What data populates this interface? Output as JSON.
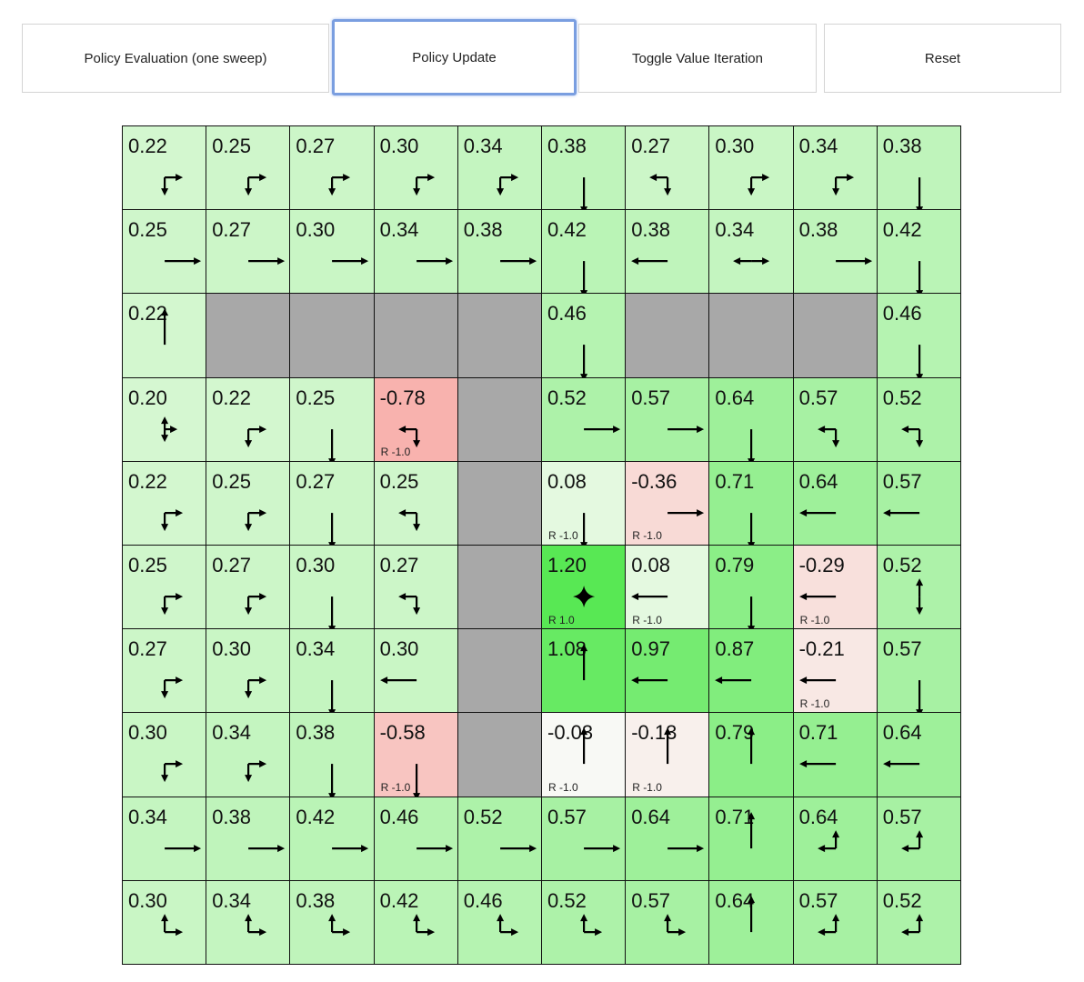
{
  "toolbar": {
    "buttons": [
      {
        "label": "Policy Evaluation (one sweep)"
      },
      {
        "label": "Policy Update",
        "focused": true
      },
      {
        "label": "Toggle Value Iteration"
      },
      {
        "label": "Reset"
      }
    ]
  },
  "colors": {
    "wall": "#a8a8a8",
    "grid_line": "#111111",
    "focus_border": "#7a9ee0"
  },
  "grid": {
    "rows": [
      [
        {
          "v": "0.22",
          "p": "rd"
        },
        {
          "v": "0.25",
          "p": "rd"
        },
        {
          "v": "0.27",
          "p": "rd"
        },
        {
          "v": "0.30",
          "p": "rd"
        },
        {
          "v": "0.34",
          "p": "rd"
        },
        {
          "v": "0.38",
          "p": "d"
        },
        {
          "v": "0.27",
          "p": "ld"
        },
        {
          "v": "0.30",
          "p": "rd"
        },
        {
          "v": "0.34",
          "p": "rd"
        },
        {
          "v": "0.38",
          "p": "d"
        }
      ],
      [
        {
          "v": "0.25",
          "p": "r"
        },
        {
          "v": "0.27",
          "p": "r"
        },
        {
          "v": "0.30",
          "p": "r"
        },
        {
          "v": "0.34",
          "p": "r"
        },
        {
          "v": "0.38",
          "p": "r"
        },
        {
          "v": "0.42",
          "p": "d"
        },
        {
          "v": "0.38",
          "p": "l"
        },
        {
          "v": "0.34",
          "p": "lr"
        },
        {
          "v": "0.38",
          "p": "r"
        },
        {
          "v": "0.42",
          "p": "d"
        }
      ],
      [
        {
          "v": "0.22",
          "p": "u"
        },
        {
          "wall": true
        },
        {
          "wall": true
        },
        {
          "wall": true
        },
        {
          "wall": true
        },
        {
          "v": "0.46",
          "p": "d"
        },
        {
          "wall": true
        },
        {
          "wall": true
        },
        {
          "wall": true
        },
        {
          "v": "0.46",
          "p": "d"
        }
      ],
      [
        {
          "v": "0.20",
          "p": "udr"
        },
        {
          "v": "0.22",
          "p": "rd"
        },
        {
          "v": "0.25",
          "p": "d"
        },
        {
          "v": "-0.78",
          "p": "ld",
          "r": "R -1.0"
        },
        {
          "wall": true
        },
        {
          "v": "0.52",
          "p": "r"
        },
        {
          "v": "0.57",
          "p": "r"
        },
        {
          "v": "0.64",
          "p": "d"
        },
        {
          "v": "0.57",
          "p": "ld"
        },
        {
          "v": "0.52",
          "p": "ld"
        }
      ],
      [
        {
          "v": "0.22",
          "p": "rd"
        },
        {
          "v": "0.25",
          "p": "rd"
        },
        {
          "v": "0.27",
          "p": "d"
        },
        {
          "v": "0.25",
          "p": "ld"
        },
        {
          "wall": true
        },
        {
          "v": "0.08",
          "p": "d",
          "r": "R -1.0"
        },
        {
          "v": "-0.36",
          "p": "r",
          "r": "R -1.0"
        },
        {
          "v": "0.71",
          "p": "d"
        },
        {
          "v": "0.64",
          "p": "l"
        },
        {
          "v": "0.57",
          "p": "l"
        }
      ],
      [
        {
          "v": "0.25",
          "p": "rd"
        },
        {
          "v": "0.27",
          "p": "rd"
        },
        {
          "v": "0.30",
          "p": "d"
        },
        {
          "v": "0.27",
          "p": "ld"
        },
        {
          "wall": true
        },
        {
          "v": "1.20",
          "p": "star",
          "r": "R 1.0"
        },
        {
          "v": "0.08",
          "p": "l",
          "r": "R -1.0"
        },
        {
          "v": "0.79",
          "p": "d"
        },
        {
          "v": "-0.29",
          "p": "l",
          "r": "R -1.0"
        },
        {
          "v": "0.52",
          "p": "ud"
        }
      ],
      [
        {
          "v": "0.27",
          "p": "rd"
        },
        {
          "v": "0.30",
          "p": "rd"
        },
        {
          "v": "0.34",
          "p": "d"
        },
        {
          "v": "0.30",
          "p": "l"
        },
        {
          "wall": true
        },
        {
          "v": "1.08",
          "p": "u"
        },
        {
          "v": "0.97",
          "p": "l"
        },
        {
          "v": "0.87",
          "p": "l"
        },
        {
          "v": "-0.21",
          "p": "l",
          "r": "R -1.0"
        },
        {
          "v": "0.57",
          "p": "d"
        }
      ],
      [
        {
          "v": "0.30",
          "p": "rd"
        },
        {
          "v": "0.34",
          "p": "rd"
        },
        {
          "v": "0.38",
          "p": "d"
        },
        {
          "v": "-0.58",
          "p": "d",
          "r": "R -1.0"
        },
        {
          "wall": true
        },
        {
          "v": "-0.03",
          "p": "u",
          "r": "R -1.0"
        },
        {
          "v": "-0.13",
          "p": "u",
          "r": "R -1.0"
        },
        {
          "v": "0.79",
          "p": "u"
        },
        {
          "v": "0.71",
          "p": "l"
        },
        {
          "v": "0.64",
          "p": "l"
        }
      ],
      [
        {
          "v": "0.34",
          "p": "r"
        },
        {
          "v": "0.38",
          "p": "r"
        },
        {
          "v": "0.42",
          "p": "r"
        },
        {
          "v": "0.46",
          "p": "r"
        },
        {
          "v": "0.52",
          "p": "r"
        },
        {
          "v": "0.57",
          "p": "r"
        },
        {
          "v": "0.64",
          "p": "r"
        },
        {
          "v": "0.71",
          "p": "u"
        },
        {
          "v": "0.64",
          "p": "ul"
        },
        {
          "v": "0.57",
          "p": "ul"
        }
      ],
      [
        {
          "v": "0.30",
          "p": "ur"
        },
        {
          "v": "0.34",
          "p": "ur"
        },
        {
          "v": "0.38",
          "p": "ur"
        },
        {
          "v": "0.42",
          "p": "ur"
        },
        {
          "v": "0.46",
          "p": "ur"
        },
        {
          "v": "0.52",
          "p": "ur"
        },
        {
          "v": "0.57",
          "p": "ur"
        },
        {
          "v": "0.64",
          "p": "u"
        },
        {
          "v": "0.57",
          "p": "ul"
        },
        {
          "v": "0.52",
          "p": "ul"
        }
      ]
    ]
  }
}
